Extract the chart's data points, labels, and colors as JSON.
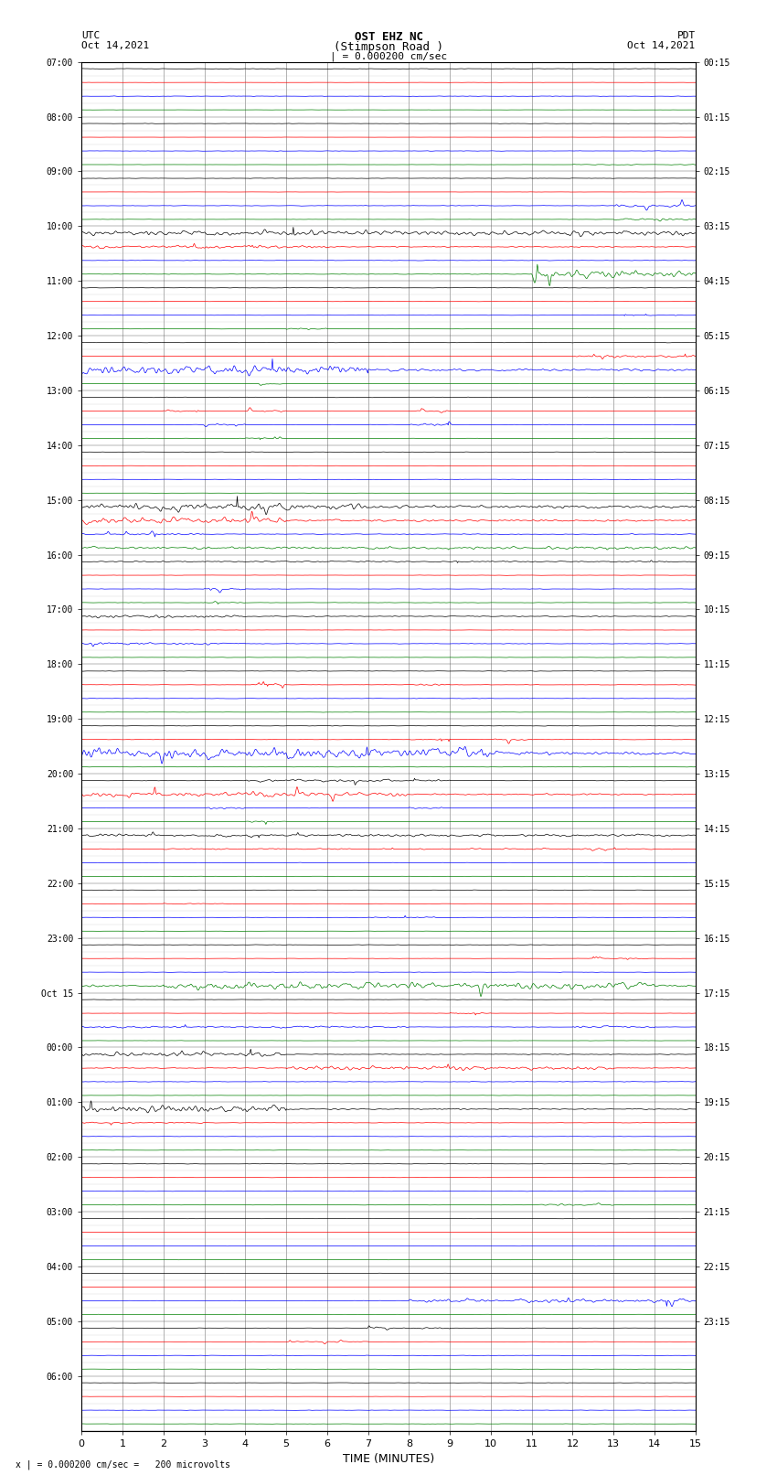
{
  "title_line1": "OST EHZ NC",
  "title_line2": "(Stimpson Road )",
  "title_scale": "| = 0.000200 cm/sec",
  "left_label_top": "UTC",
  "left_label_date": "Oct 14,2021",
  "right_label_top": "PDT",
  "right_label_date": "Oct 14,2021",
  "bottom_label": "TIME (MINUTES)",
  "scale_text": "x | = 0.000200 cm/sec =   200 microvolts",
  "bg_color": "#ffffff",
  "trace_colors": [
    "black",
    "red",
    "blue",
    "green"
  ],
  "utc_hour_labels": [
    "07:00",
    "08:00",
    "09:00",
    "10:00",
    "11:00",
    "12:00",
    "13:00",
    "14:00",
    "15:00",
    "16:00",
    "17:00",
    "18:00",
    "19:00",
    "20:00",
    "21:00",
    "22:00",
    "23:00",
    "Oct 15",
    "00:00",
    "01:00",
    "02:00",
    "03:00",
    "04:00",
    "05:00",
    "06:00"
  ],
  "pdt_hour_labels": [
    "00:15",
    "01:15",
    "02:15",
    "03:15",
    "04:15",
    "05:15",
    "06:15",
    "07:15",
    "08:15",
    "09:15",
    "10:15",
    "11:15",
    "12:15",
    "13:15",
    "14:15",
    "15:15",
    "16:15",
    "17:15",
    "18:15",
    "19:15",
    "20:15",
    "21:15",
    "22:15",
    "23:15"
  ],
  "traces_per_hour": 4,
  "n_hours": 25,
  "n_pts": 1500,
  "seed": 12345
}
